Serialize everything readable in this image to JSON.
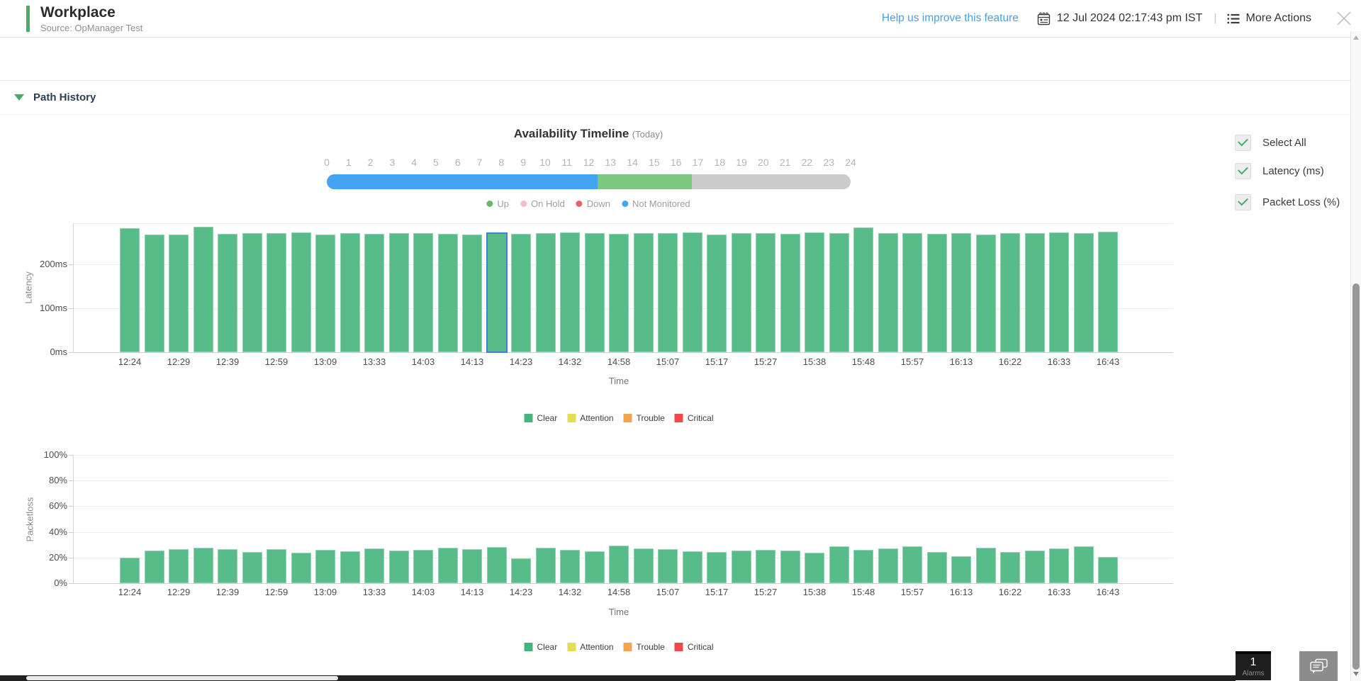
{
  "header": {
    "title": "Workplace",
    "subtitle": "Source: OpManager Test",
    "help_link": "Help us improve this feature",
    "datetime": "12 Jul 2024 02:17:43 pm IST",
    "divider": "|",
    "more_actions": "More Actions",
    "accent_color": "#46af6e"
  },
  "section": {
    "title": "Path History"
  },
  "timeline": {
    "title": "Availability Timeline",
    "subtitle": "(Today)",
    "hours": [
      "0",
      "1",
      "2",
      "3",
      "4",
      "5",
      "6",
      "7",
      "8",
      "9",
      "10",
      "11",
      "12",
      "13",
      "14",
      "15",
      "16",
      "17",
      "18",
      "19",
      "20",
      "21",
      "22",
      "23",
      "24"
    ],
    "segments": [
      {
        "name": "not-monitored",
        "color": "#45a4f1",
        "from": 0,
        "to": 12.4
      },
      {
        "name": "up",
        "color": "#7cc87e",
        "from": 12.4,
        "to": 16.72
      },
      {
        "name": "no-data",
        "color": "#cbcbcb",
        "from": 16.72,
        "to": 24
      }
    ],
    "legend": [
      {
        "label": "Up",
        "color": "#66bb6a"
      },
      {
        "label": "On Hold",
        "color": "#f8bbc5"
      },
      {
        "label": "Down",
        "color": "#ec5f6a"
      },
      {
        "label": "Not Monitored",
        "color": "#42a5f5"
      }
    ]
  },
  "controls": {
    "items": [
      {
        "label": "Select All",
        "checked": true
      },
      {
        "label": "Latency (ms)",
        "checked": true
      },
      {
        "label": "Packet Loss (%)",
        "checked": true
      }
    ]
  },
  "chart_data": [
    {
      "type": "bar",
      "title": "Latency",
      "ylabel": "Latency",
      "xlabel": "Time",
      "ylim": [
        0,
        293
      ],
      "grid": true,
      "legend_position": "bottom",
      "bar_color": "#57bb8a",
      "selected_index": 15,
      "selected_outline_color": "#3c82d4",
      "yticks": [
        {
          "label": "0ms",
          "value": 0
        },
        {
          "label": "100ms",
          "value": 100
        },
        {
          "label": "200ms",
          "value": 200
        }
      ],
      "categories": [
        "12:24",
        "",
        "12:29",
        "",
        "12:39",
        "",
        "12:59",
        "",
        "13:09",
        "",
        "13:33",
        "",
        "14:03",
        "",
        "14:13",
        "",
        "14:23",
        "",
        "14:32",
        "",
        "14:58",
        "",
        "15:07",
        "",
        "15:17",
        "",
        "15:27",
        "",
        "15:38",
        "",
        "15:48",
        "",
        "15:57",
        "",
        "16:13",
        "",
        "16:22",
        "",
        "16:33",
        "",
        "16:43"
      ],
      "values": [
        281,
        268,
        267,
        285,
        269,
        271,
        270,
        272,
        268,
        270,
        269,
        271,
        270,
        269,
        268,
        271,
        269,
        270,
        272,
        270,
        269,
        271,
        270,
        272,
        268,
        270,
        271,
        269,
        272,
        270,
        283,
        270,
        271,
        269,
        270,
        268,
        271,
        270,
        272,
        270,
        274
      ],
      "legend": [
        {
          "label": "Clear",
          "color": "#45b57f"
        },
        {
          "label": "Attention",
          "color": "#e1de51"
        },
        {
          "label": "Trouble",
          "color": "#f4a44e"
        },
        {
          "label": "Critical",
          "color": "#f24848"
        }
      ]
    },
    {
      "type": "bar",
      "title": "Packetloss",
      "ylabel": "Packetloss",
      "xlabel": "Time",
      "ylim": [
        0,
        100
      ],
      "grid": true,
      "legend_position": "bottom",
      "bar_color": "#57bb8a",
      "yticks": [
        {
          "label": "0%",
          "value": 0
        },
        {
          "label": "20%",
          "value": 20
        },
        {
          "label": "40%",
          "value": 40
        },
        {
          "label": "60%",
          "value": 60
        },
        {
          "label": "80%",
          "value": 80
        },
        {
          "label": "100%",
          "value": 100
        }
      ],
      "categories": [
        "12:24",
        "",
        "12:29",
        "",
        "12:39",
        "",
        "12:59",
        "",
        "13:09",
        "",
        "13:33",
        "",
        "14:03",
        "",
        "14:13",
        "",
        "14:23",
        "",
        "14:32",
        "",
        "14:58",
        "",
        "15:07",
        "",
        "15:17",
        "",
        "15:27",
        "",
        "15:38",
        "",
        "15:48",
        "",
        "15:57",
        "",
        "16:13",
        "",
        "16:22",
        "",
        "16:33",
        "",
        "16:43"
      ],
      "values": [
        20,
        25.5,
        26.5,
        27.5,
        26.5,
        24.5,
        26.5,
        24,
        26,
        25,
        27,
        25.5,
        26,
        27.5,
        26.5,
        28,
        19.5,
        27.5,
        26,
        25,
        29.5,
        27,
        26.5,
        25,
        24.5,
        25.5,
        26,
        25.5,
        23.5,
        28.5,
        26,
        27,
        28.5,
        24.5,
        21,
        27.5,
        24.5,
        25.5,
        27,
        28.5,
        20.5
      ],
      "legend": [
        {
          "label": "Clear",
          "color": "#45b57f"
        },
        {
          "label": "Attention",
          "color": "#e1de51"
        },
        {
          "label": "Trouble",
          "color": "#f4a44e"
        },
        {
          "label": "Critical",
          "color": "#f24848"
        }
      ]
    }
  ],
  "footer": {
    "alarms_count": "1",
    "alarms_label": "Alarms"
  }
}
